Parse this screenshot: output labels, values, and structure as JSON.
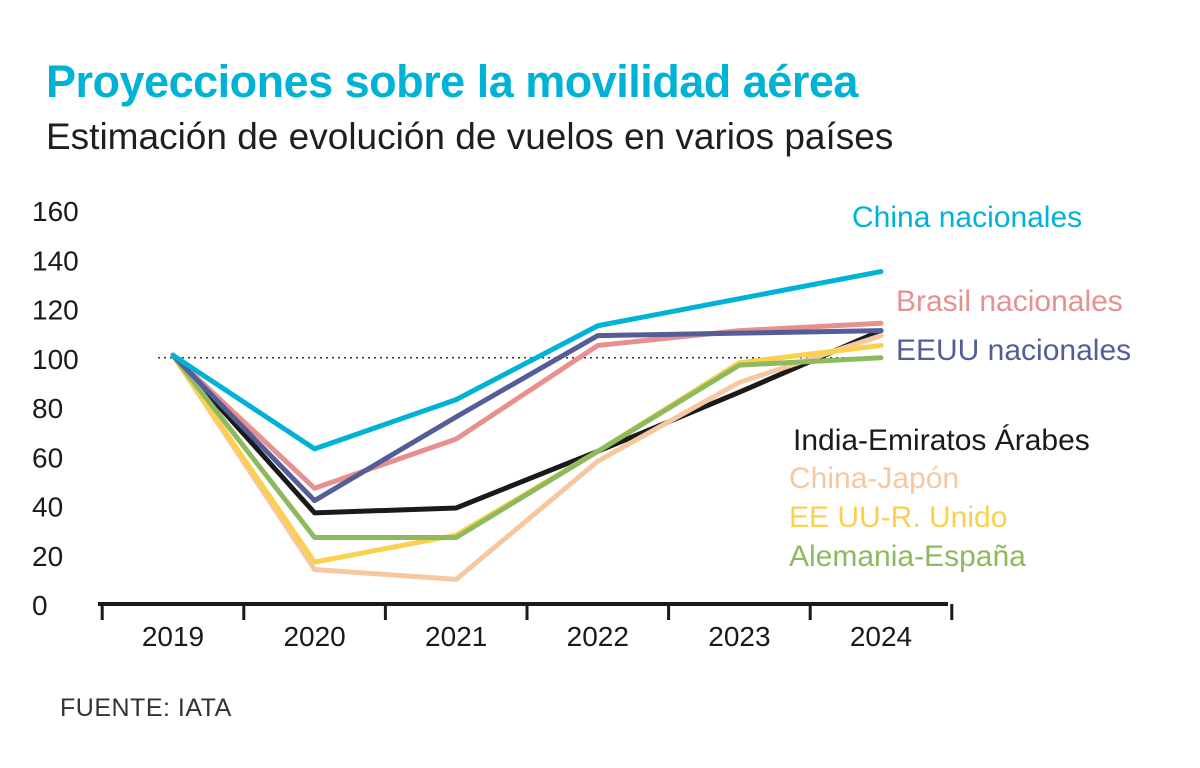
{
  "header": {
    "title": "Proyecciones sobre la movilidad aérea",
    "subtitle": "Estimación de evolución de vuelos en varios países"
  },
  "footer": {
    "source": "FUENTE: IATA"
  },
  "chart_data": {
    "type": "line",
    "title": "Proyecciones sobre la movilidad aérea",
    "subtitle": "Estimación de evolución de vuelos en varios países",
    "xlabel": "",
    "ylabel": "",
    "categories": [
      "2019",
      "2020",
      "2021",
      "2022",
      "2023",
      "2024"
    ],
    "ylim": [
      0,
      160
    ],
    "yticks": [
      0,
      20,
      40,
      60,
      80,
      100,
      120,
      140,
      160
    ],
    "reference_line": {
      "y": 100,
      "style": "dotted"
    },
    "grid": false,
    "legend": "right, labels next to lines",
    "series": [
      {
        "name": "India-Emiratos Árabes",
        "color": "#1a1a1a",
        "values": [
          101,
          37,
          39,
          62,
          86,
          111
        ]
      },
      {
        "name": "China-Japón",
        "color": "#f6c8a2",
        "values": [
          101,
          14,
          10,
          58,
          90,
          109
        ]
      },
      {
        "name": "EE UU-R. Unido",
        "color": "#fcd04f",
        "values": [
          101,
          17,
          28,
          62,
          98,
          105
        ]
      },
      {
        "name": "Alemania-España",
        "color": "#8dba5e",
        "values": [
          101,
          27,
          27,
          62,
          97,
          100
        ]
      },
      {
        "name": "Brasil nacionales",
        "color": "#e8908e",
        "values": [
          101,
          47,
          67,
          105,
          111,
          114
        ]
      },
      {
        "name": "EEUU nacionales",
        "color": "#555d99",
        "values": [
          101,
          42,
          76,
          109,
          110,
          111
        ]
      },
      {
        "name": "China nacionales",
        "color": "#00b3d6",
        "values": [
          101,
          63,
          83,
          113,
          124,
          135
        ]
      }
    ]
  }
}
